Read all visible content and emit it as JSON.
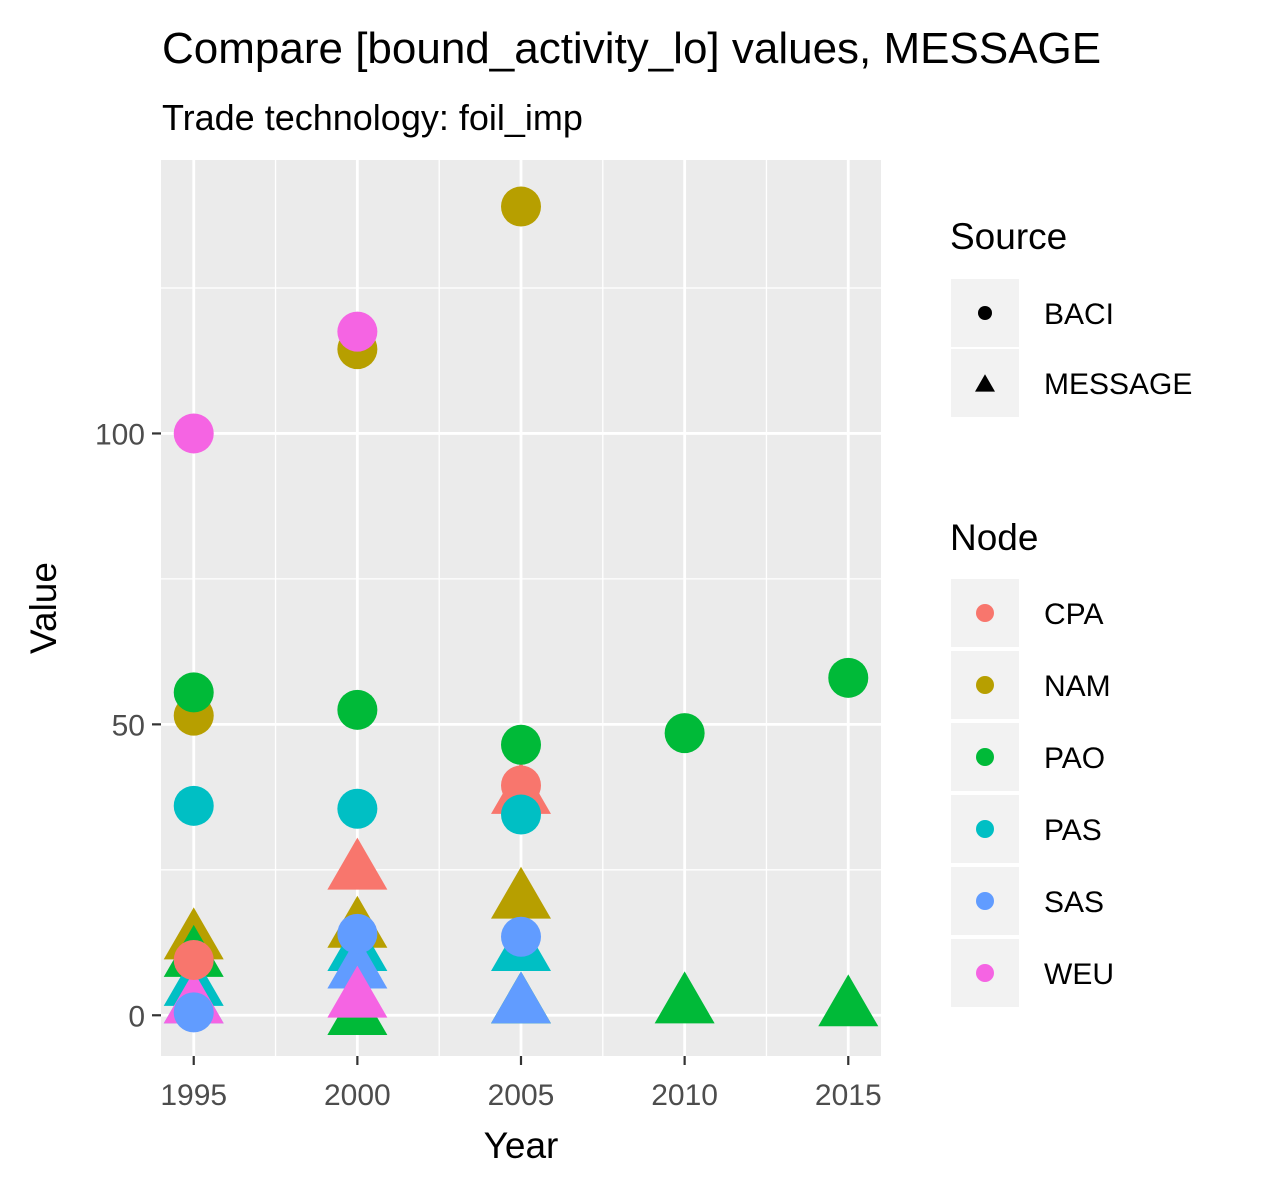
{
  "chart_data": {
    "type": "scatter",
    "title": "Compare [bound_activity_lo] values, MESSAGE",
    "subtitle": "Trade technology: foil_imp",
    "xlabel": "Year",
    "ylabel": "Value",
    "xlim": [
      1994,
      2016
    ],
    "ylim": [
      -7,
      147
    ],
    "x_ticks": [
      1995,
      2000,
      2005,
      2010,
      2015
    ],
    "x_minor_ticks": [
      1997.5,
      2002.5,
      2007.5,
      2012.5
    ],
    "y_ticks": [
      0,
      50,
      100
    ],
    "y_minor_ticks": [
      25,
      75,
      125
    ],
    "grid": true,
    "legend_placement": "right",
    "legends": {
      "shape": {
        "title": "Source",
        "entries": [
          {
            "label": "BACI",
            "shape": "circle"
          },
          {
            "label": "MESSAGE",
            "shape": "triangle"
          }
        ]
      },
      "color": {
        "title": "Node",
        "entries": [
          {
            "label": "CPA",
            "color": "#F8766D"
          },
          {
            "label": "NAM",
            "color": "#B79F00"
          },
          {
            "label": "PAO",
            "color": "#00BA38"
          },
          {
            "label": "PAS",
            "color": "#00BFC4"
          },
          {
            "label": "SAS",
            "color": "#619CFF"
          },
          {
            "label": "WEU",
            "color": "#F564E3"
          }
        ]
      }
    },
    "points": [
      {
        "source": "MESSAGE",
        "node": "NAM",
        "x": 1995,
        "y": 13
      },
      {
        "source": "MESSAGE",
        "node": "PAO",
        "x": 1995,
        "y": 10
      },
      {
        "source": "MESSAGE",
        "node": "PAS",
        "x": 1995,
        "y": 5
      },
      {
        "source": "MESSAGE",
        "node": "SAS",
        "x": 1995,
        "y": 2
      },
      {
        "source": "MESSAGE",
        "node": "WEU",
        "x": 1995,
        "y": 2
      },
      {
        "source": "MESSAGE",
        "node": "PAO",
        "x": 2000,
        "y": 0
      },
      {
        "source": "MESSAGE",
        "node": "NAM",
        "x": 2000,
        "y": 15
      },
      {
        "source": "MESSAGE",
        "node": "CPA",
        "x": 2000,
        "y": 25
      },
      {
        "source": "MESSAGE",
        "node": "PAS",
        "x": 2000,
        "y": 11
      },
      {
        "source": "MESSAGE",
        "node": "SAS",
        "x": 2000,
        "y": 8
      },
      {
        "source": "MESSAGE",
        "node": "WEU",
        "x": 2000,
        "y": 3
      },
      {
        "source": "MESSAGE",
        "node": "NAM",
        "x": 2005,
        "y": 20
      },
      {
        "source": "MESSAGE",
        "node": "CPA",
        "x": 2005,
        "y": 38
      },
      {
        "source": "MESSAGE",
        "node": "PAS",
        "x": 2005,
        "y": 11
      },
      {
        "source": "MESSAGE",
        "node": "PAO",
        "x": 2005,
        "y": 2
      },
      {
        "source": "MESSAGE",
        "node": "SAS",
        "x": 2005,
        "y": 2
      },
      {
        "source": "MESSAGE",
        "node": "PAO",
        "x": 2010,
        "y": 2
      },
      {
        "source": "MESSAGE",
        "node": "PAO",
        "x": 2015,
        "y": 1.5
      },
      {
        "source": "BACI",
        "node": "WEU",
        "x": 1995,
        "y": 100
      },
      {
        "source": "BACI",
        "node": "NAM",
        "x": 1995,
        "y": 51.5
      },
      {
        "source": "BACI",
        "node": "PAO",
        "x": 1995,
        "y": 55.5
      },
      {
        "source": "BACI",
        "node": "PAS",
        "x": 1995,
        "y": 36
      },
      {
        "source": "BACI",
        "node": "CPA",
        "x": 1995,
        "y": 9.5
      },
      {
        "source": "BACI",
        "node": "SAS",
        "x": 1995,
        "y": 0.5
      },
      {
        "source": "BACI",
        "node": "NAM",
        "x": 2000,
        "y": 114.5
      },
      {
        "source": "BACI",
        "node": "WEU",
        "x": 2000,
        "y": 117.5
      },
      {
        "source": "BACI",
        "node": "PAO",
        "x": 2000,
        "y": 52.5
      },
      {
        "source": "BACI",
        "node": "PAS",
        "x": 2000,
        "y": 35.5
      },
      {
        "source": "BACI",
        "node": "SAS",
        "x": 2000,
        "y": 14
      },
      {
        "source": "BACI",
        "node": "NAM",
        "x": 2005,
        "y": 139
      },
      {
        "source": "BACI",
        "node": "PAO",
        "x": 2005,
        "y": 46.5
      },
      {
        "source": "BACI",
        "node": "CPA",
        "x": 2005,
        "y": 39.5
      },
      {
        "source": "BACI",
        "node": "PAS",
        "x": 2005,
        "y": 34.5
      },
      {
        "source": "BACI",
        "node": "SAS",
        "x": 2005,
        "y": 13.5
      },
      {
        "source": "BACI",
        "node": "PAO",
        "x": 2010,
        "y": 48.5
      },
      {
        "source": "BACI",
        "node": "PAO",
        "x": 2015,
        "y": 58
      }
    ]
  }
}
